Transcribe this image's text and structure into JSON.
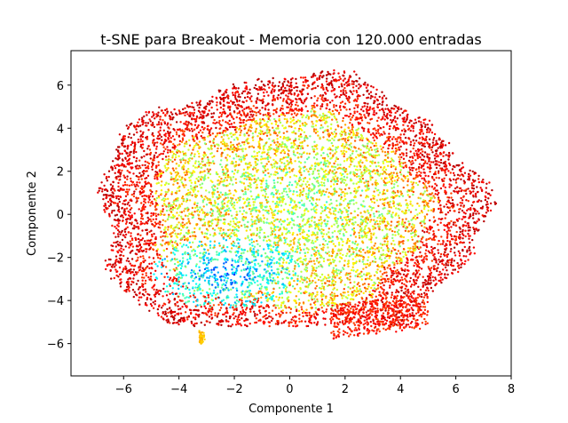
{
  "chart_data": {
    "type": "scatter",
    "title": "t-SNE para Breakout - Memoria con 120.000 entradas",
    "xlabel": "Componente 1",
    "ylabel": "Componente 2",
    "xlim": [
      -7.9,
      8.0
    ],
    "ylim": [
      -7.5,
      7.6
    ],
    "xticks": [
      -6,
      -4,
      -2,
      0,
      2,
      4,
      6,
      8
    ],
    "yticks": [
      -6,
      -4,
      -2,
      0,
      2,
      4,
      6
    ],
    "grid": false,
    "legend": "none",
    "colormap": "jet",
    "marker_size": 1.2,
    "point_count_rendered": 9000,
    "distribution": {
      "outer_ring": {
        "color_values": [
          0.78,
          0.92
        ],
        "description": "red/orange points on the ring"
      },
      "inner_region": {
        "color_values": [
          0.35,
          0.7
        ],
        "description": "yellow/green central band"
      },
      "core_cluster": {
        "center": [
          -2.2,
          -2.8
        ],
        "color_values": [
          0.1,
          0.4
        ],
        "description": "cyan/blue points on lower left"
      },
      "small_cluster": {
        "center": [
          -3.2,
          -5.7
        ],
        "color_value": 0.68
      }
    }
  }
}
